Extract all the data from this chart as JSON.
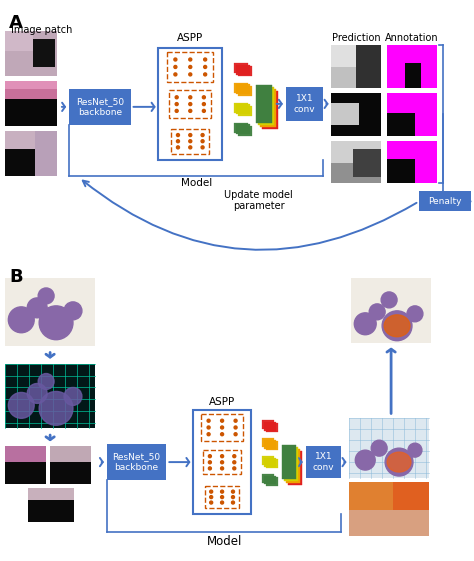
{
  "bg_color": "#ffffff",
  "box_color": "#4472c4",
  "arrow_color": "#4472c4",
  "color_red": "#e02020",
  "color_orange": "#f0a000",
  "color_yellow": "#d4d000",
  "color_green_light": "#90c840",
  "color_green": "#408040",
  "magenta": "#ff00ff",
  "aspp_dot_color": "#cc5500",
  "resnet_label_A": "ResNet_50\nbackbone",
  "resnet_label_B": "ResNet_50\nbackbone",
  "aspp_label": "ASPP",
  "conv_label": "1X1\nconv",
  "model_label_A": "Model",
  "model_label_B": "Model",
  "penalty_label": "Penalty",
  "update_label": "Update model\nparameter",
  "img_patch_label": "Image patch",
  "prediction_label": "Prediction",
  "annotation_label": "Annotation"
}
